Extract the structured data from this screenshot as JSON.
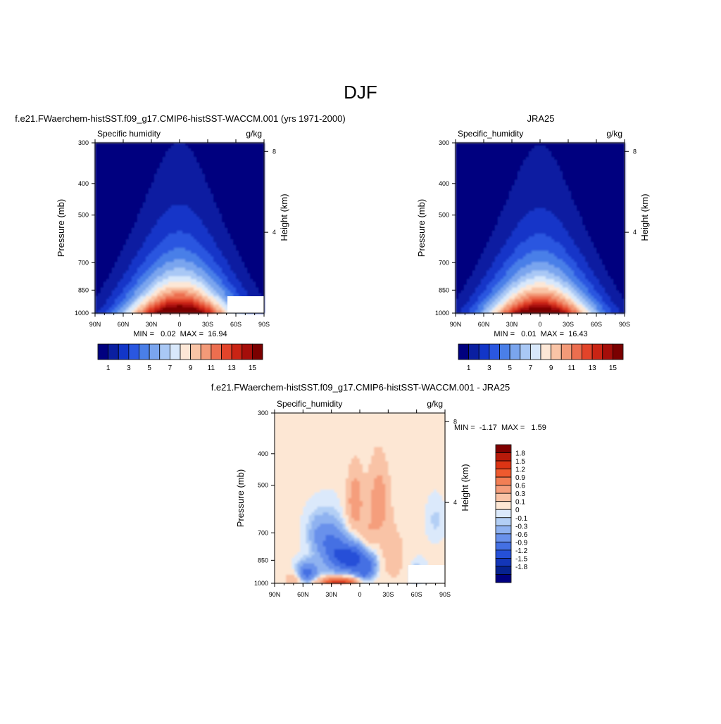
{
  "figure_title": "DJF",
  "panels": [
    {
      "id": "model",
      "title": "f.e21.FWaerchem-histSST.f09_g17.CMIP6-histSST-WACCM.001 (yrs 1971-2000)",
      "left_label": "Specific humidity",
      "right_label": "g/kg",
      "ylabel": "Pressure (mb)",
      "y2label": "Height (km)",
      "stats": "MIN =   0.02  MAX =  16.94"
    },
    {
      "id": "obs",
      "title": "JRA25",
      "left_label": "Specific_humidity",
      "right_label": "g/kg",
      "ylabel": "Pressure (mb)",
      "y2label": "Height (km)",
      "stats": "MIN =   0.01  MAX =  16.43"
    },
    {
      "id": "diff",
      "title": "f.e21.FWaerchem-histSST.f09_g17.CMIP6-histSST-WACCM.001 - JRA25",
      "left_label": "Specific_humidity",
      "right_label": "g/kg",
      "ylabel": "Pressure (mb)",
      "y2label": "Height (km)",
      "stats": "MIN =  -1.17  MAX =   1.59"
    }
  ],
  "colorbars": {
    "abs": {
      "colors": [
        "#00007f",
        "#0a1fa1",
        "#1236c8",
        "#2a57e0",
        "#4a7fe8",
        "#7aa5ee",
        "#a9c8f5",
        "#d8e8fb",
        "#fde7d6",
        "#f9c4a6",
        "#f39a78",
        "#ec6e4f",
        "#e2442a",
        "#c92414",
        "#a50e0a",
        "#7a0000"
      ],
      "labels": [
        "1",
        "3",
        "5",
        "7",
        "9",
        "11",
        "13",
        "15"
      ]
    },
    "diff": {
      "colors": [
        "#7f0000",
        "#b81a0a",
        "#dc3414",
        "#ee5a2e",
        "#f27f55",
        "#f59e7c",
        "#f9c3a6",
        "#fde7d4",
        "#dbe9fb",
        "#b3cff5",
        "#8fb2f0",
        "#6991eb",
        "#4470e3",
        "#2550d8",
        "#1336b8",
        "#06228f",
        "#00007f"
      ],
      "labels": [
        "1.8",
        "1.5",
        "1.2",
        "0.9",
        "0.6",
        "0.3",
        "0.1",
        "0",
        "-0.1",
        "-0.3",
        "-0.6",
        "-0.9",
        "-1.2",
        "-1.5",
        "-1.8"
      ]
    }
  },
  "chart_data": [
    {
      "type": "heatmap",
      "title": "f.e21.FWaerchem-histSST.f09_g17.CMIP6-histSST-WACCM.001 (yrs 1971-2000)",
      "variable": "Specific humidity",
      "units": "g/kg",
      "xlabel": "",
      "ylabel": "Pressure (mb)",
      "y2label": "Height (km)",
      "x_ticks": [
        "90N",
        "60N",
        "30N",
        "0",
        "30S",
        "60S",
        "90S"
      ],
      "y_ticks": [
        300,
        400,
        500,
        700,
        850,
        1000
      ],
      "y2_ticks": [
        "8",
        "4"
      ],
      "ylim": [
        1000,
        300
      ],
      "y_scale": "log",
      "stats": {
        "min": 0.02,
        "max": 16.94
      },
      "contour_levels": [
        1,
        2,
        3,
        4,
        5,
        6,
        7,
        8,
        9,
        10,
        11,
        12,
        13,
        14,
        15
      ],
      "peak": {
        "lat": 0,
        "pressure": 1000,
        "value": 16.94
      }
    },
    {
      "type": "heatmap",
      "title": "JRA25",
      "variable": "Specific_humidity",
      "units": "g/kg",
      "xlabel": "",
      "ylabel": "Pressure (mb)",
      "y2label": "Height (km)",
      "x_ticks": [
        "90N",
        "60N",
        "30N",
        "0",
        "30S",
        "60S",
        "90S"
      ],
      "y_ticks": [
        300,
        400,
        500,
        700,
        850,
        1000
      ],
      "y2_ticks": [
        "8",
        "4"
      ],
      "ylim": [
        1000,
        300
      ],
      "y_scale": "log",
      "stats": {
        "min": 0.01,
        "max": 16.43
      },
      "contour_levels": [
        1,
        2,
        3,
        4,
        5,
        6,
        7,
        8,
        9,
        10,
        11,
        12,
        13,
        14,
        15
      ],
      "peak": {
        "lat": 0,
        "pressure": 1000,
        "value": 16.43
      }
    },
    {
      "type": "heatmap",
      "title": "f.e21.FWaerchem-histSST.f09_g17.CMIP6-histSST-WACCM.001 - JRA25",
      "variable": "Specific_humidity",
      "units": "g/kg",
      "xlabel": "",
      "ylabel": "Pressure (mb)",
      "y2label": "Height (km)",
      "x_ticks": [
        "90N",
        "60N",
        "30N",
        "0",
        "30S",
        "60S",
        "90S"
      ],
      "y_ticks": [
        300,
        400,
        500,
        700,
        850,
        1000
      ],
      "y2_ticks": [
        "8",
        "4"
      ],
      "ylim": [
        1000,
        300
      ],
      "y_scale": "log",
      "stats": {
        "min": -1.17,
        "max": 1.59
      },
      "contour_levels": [
        -1.8,
        -1.5,
        -1.2,
        -0.9,
        -0.6,
        -0.3,
        -0.1,
        0,
        0.1,
        0.3,
        0.6,
        0.9,
        1.2,
        1.5,
        1.8
      ],
      "features": [
        {
          "lat": 8,
          "pressure": 840,
          "value": -1.17,
          "sign": "negative"
        },
        {
          "lat": 20,
          "pressure": 990,
          "value": 1.59,
          "sign": "positive"
        },
        {
          "lat": 5,
          "pressure": 550,
          "value": 0.8,
          "sign": "positive"
        },
        {
          "lat": -20,
          "pressure": 550,
          "value": 0.7,
          "sign": "positive"
        }
      ]
    }
  ]
}
